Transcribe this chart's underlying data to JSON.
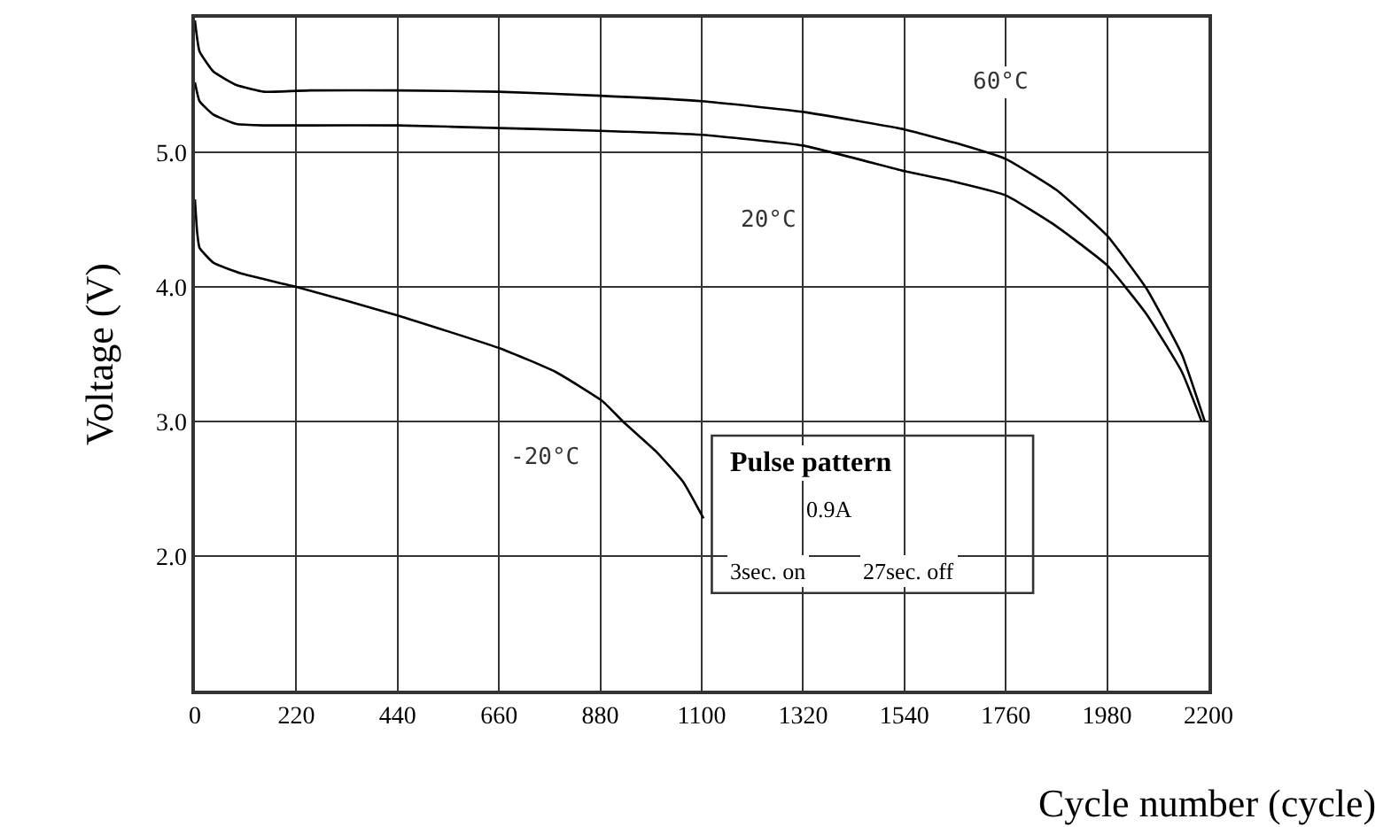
{
  "chart_data": {
    "type": "line",
    "xlabel": "Cycle number (cycle)",
    "ylabel": "Voltage (V)",
    "x": [
      0,
      10,
      40,
      90,
      150,
      250,
      440,
      660,
      880,
      1100,
      1320,
      1540,
      1650,
      1760,
      1870,
      1980,
      2065,
      2142,
      2192
    ],
    "series": [
      {
        "color": "#000000",
        "values": [
          5.98,
          5.75,
          5.6,
          5.5,
          5.45,
          5.46,
          5.46,
          5.45,
          5.42,
          5.38,
          5.3,
          5.17,
          5.07,
          4.95,
          4.72,
          4.38,
          3.99,
          3.5,
          3.0
        ]
      },
      {
        "color": "#000000",
        "x": [
          0,
          10,
          40,
          90,
          150,
          250,
          440,
          660,
          880,
          1100,
          1320,
          1540,
          1650,
          1760,
          1870,
          1980,
          2065,
          2142,
          2185
        ],
        "values": [
          5.52,
          5.38,
          5.28,
          5.21,
          5.2,
          5.2,
          5.2,
          5.18,
          5.16,
          5.13,
          5.05,
          4.86,
          4.78,
          4.68,
          4.45,
          4.16,
          3.8,
          3.37,
          3.0
        ]
      },
      {
        "color": "#000000",
        "x": [
          0,
          5,
          10,
          40,
          100,
          220,
          438,
          665,
          782,
          885,
          929,
          1000,
          1060,
          1104
        ],
        "values": [
          4.65,
          4.4,
          4.29,
          4.18,
          4.1,
          4.0,
          3.79,
          3.54,
          3.37,
          3.15,
          3.0,
          2.78,
          2.55,
          2.28
        ]
      }
    ],
    "xlim": [
      0,
      2200
    ],
    "xticks": [
      0,
      220,
      440,
      660,
      880,
      1100,
      1320,
      1540,
      1760,
      1980,
      2200
    ],
    "ylim": [
      1,
      6
    ],
    "yticks": [
      {
        "value": 2,
        "label": "2.0"
      },
      {
        "value": 3,
        "label": "3.0"
      },
      {
        "value": 4,
        "label": "4.0"
      },
      {
        "value": 5,
        "label": "5.0"
      }
    ],
    "grid": true,
    "legend": false,
    "marker": "none",
    "line_style": "solid",
    "annotations": [
      "60°C",
      "20°C",
      "-20°C",
      "Pulse pattern",
      "0.9A",
      "3sec. on",
      "27sec. off"
    ]
  }
}
